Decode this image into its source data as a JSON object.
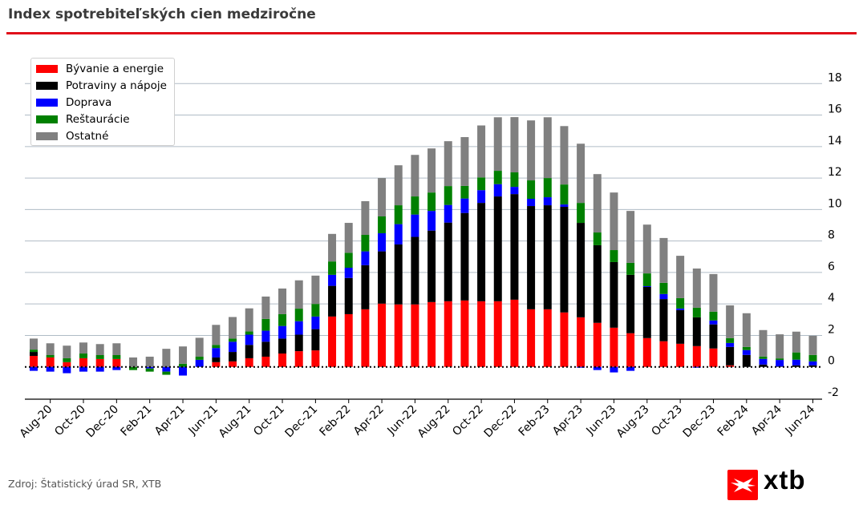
{
  "header": {
    "title": "Index spotrebiteľských cien medziročne"
  },
  "footer": {
    "source": "Zdroj: Štatistický úrad SR, XTB",
    "logo_text": "xtb"
  },
  "chart_data": {
    "type": "bar",
    "stacked": true,
    "title": "",
    "xlabel": "",
    "ylabel": "",
    "ylim": [
      -2,
      20
    ],
    "yticks": [
      -2,
      0,
      2,
      4,
      6,
      8,
      10,
      12,
      14,
      16,
      18
    ],
    "y_axis_side": "right",
    "grid": "horizontal",
    "legend_position": "top-left",
    "zero_line": "dotted",
    "categories": [
      "Jul-20",
      "Aug-20",
      "Sep-20",
      "Oct-20",
      "Nov-20",
      "Dec-20",
      "Jan-21",
      "Feb-21",
      "Mar-21",
      "Apr-21",
      "May-21",
      "Jun-21",
      "Jul-21",
      "Aug-21",
      "Sep-21",
      "Oct-21",
      "Nov-21",
      "Dec-21",
      "Jan-22",
      "Feb-22",
      "Mar-22",
      "Apr-22",
      "May-22",
      "Jun-22",
      "Jul-22",
      "Aug-22",
      "Sep-22",
      "Oct-22",
      "Nov-22",
      "Dec-22",
      "Jan-23",
      "Feb-23",
      "Mar-23",
      "Apr-23",
      "May-23",
      "Jun-23",
      "Jul-23",
      "Aug-23",
      "Sep-23",
      "Oct-23",
      "Nov-23",
      "Dec-23",
      "Jan-24",
      "Feb-24",
      "Mar-24",
      "Apr-24",
      "May-24",
      "Jun-24"
    ],
    "xtick_labels": [
      "Aug-20",
      "Oct-20",
      "Dec-20",
      "Feb-21",
      "Apr-21",
      "Jun-21",
      "Aug-21",
      "Oct-21",
      "Dec-21",
      "Feb-22",
      "Apr-22",
      "Jun-22",
      "Aug-22",
      "Oct-22",
      "Dec-22",
      "Feb-23",
      "Apr-23",
      "Jun-23",
      "Aug-23",
      "Oct-23",
      "Dec-23",
      "Feb-24",
      "Apr-24",
      "Jun-24"
    ],
    "series": [
      {
        "name": "Bývanie a energie",
        "color": "#ff0000",
        "values": [
          0.7,
          0.6,
          0.3,
          0.55,
          0.5,
          0.5,
          0,
          0,
          0,
          0,
          0,
          0.3,
          0.35,
          0.55,
          0.65,
          0.85,
          1.0,
          1.05,
          3.2,
          3.35,
          3.66,
          4.02,
          3.97,
          3.97,
          4.12,
          4.17,
          4.22,
          4.17,
          4.17,
          4.27,
          3.66,
          3.66,
          3.46,
          3.15,
          2.8,
          2.49,
          2.14,
          1.83,
          1.63,
          1.47,
          1.32,
          1.17,
          0.1,
          0,
          0,
          0,
          0,
          0
        ]
      },
      {
        "name": "Potraviny a nápoje",
        "color": "#000000",
        "values": [
          0.25,
          0,
          0,
          0,
          0,
          0,
          0,
          0,
          0,
          0,
          0,
          0.3,
          0.6,
          0.85,
          0.95,
          0.95,
          1.05,
          1.35,
          1.95,
          2.3,
          2.8,
          3.32,
          3.81,
          4.29,
          4.54,
          5.0,
          5.56,
          6.25,
          6.66,
          6.71,
          6.56,
          6.61,
          6.71,
          6.0,
          4.93,
          4.17,
          3.71,
          3.25,
          2.68,
          2.14,
          1.83,
          1.53,
          1.17,
          0.76,
          0.15,
          0.03,
          0.1,
          0.1
        ]
      },
      {
        "name": "Doprava",
        "color": "#0000ff",
        "values": [
          -0.25,
          -0.3,
          -0.4,
          -0.3,
          -0.3,
          -0.2,
          0,
          -0.1,
          -0.3,
          -0.55,
          0.45,
          0.6,
          0.65,
          0.65,
          0.7,
          0.8,
          0.85,
          0.8,
          0.7,
          0.65,
          0.88,
          1.15,
          1.29,
          1.42,
          1.25,
          1.12,
          0.92,
          0.81,
          0.78,
          0.46,
          0.46,
          0.51,
          0.15,
          -0.05,
          -0.2,
          -0.35,
          -0.25,
          0.05,
          0.32,
          0.1,
          -0.05,
          0.25,
          0.25,
          0.31,
          0.36,
          0.41,
          0.36,
          0.25
        ]
      },
      {
        "name": "Reštaurácie",
        "color": "#008000",
        "values": [
          0.15,
          0.15,
          0.25,
          0.3,
          0.25,
          0.25,
          -0.2,
          -0.2,
          -0.2,
          0.2,
          0.2,
          0.2,
          0.2,
          0.2,
          0.75,
          0.75,
          0.8,
          0.8,
          0.85,
          0.95,
          1.05,
          1.07,
          1.2,
          1.15,
          1.17,
          1.2,
          0.8,
          0.81,
          0.85,
          0.92,
          1.17,
          1.22,
          1.27,
          1.27,
          0.81,
          0.76,
          0.76,
          0.81,
          0.71,
          0.66,
          0.61,
          0.56,
          0.31,
          0.2,
          0.15,
          0.1,
          0.46,
          0.41
        ]
      },
      {
        "name": "Ostatné",
        "color": "#808080",
        "values": [
          0.7,
          0.75,
          0.8,
          0.7,
          0.7,
          0.75,
          0.6,
          0.65,
          1.15,
          1.1,
          1.2,
          1.27,
          1.37,
          1.47,
          1.42,
          1.63,
          1.8,
          1.8,
          1.75,
          1.9,
          2.14,
          2.44,
          2.54,
          2.64,
          2.8,
          2.85,
          3.1,
          3.3,
          3.4,
          3.51,
          3.81,
          3.86,
          3.71,
          3.76,
          3.71,
          3.66,
          3.3,
          3.1,
          2.85,
          2.69,
          2.49,
          2.39,
          2.08,
          2.14,
          1.68,
          1.53,
          1.32,
          1.22
        ]
      }
    ]
  }
}
